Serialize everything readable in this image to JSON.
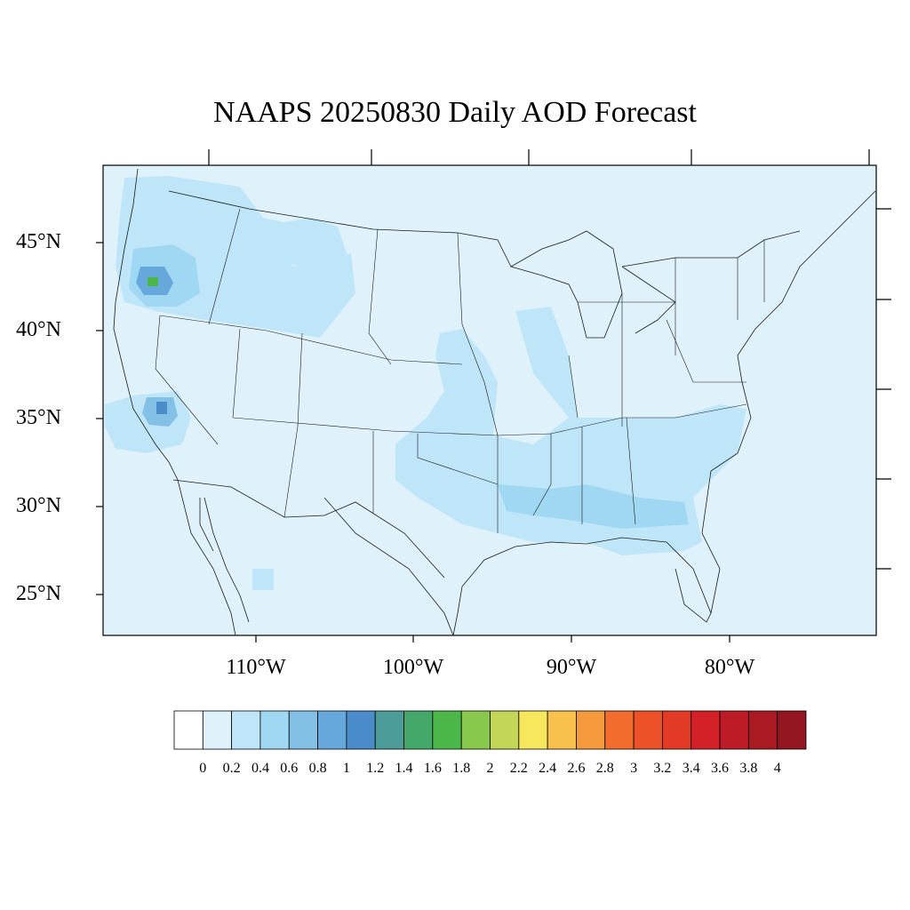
{
  "title": "NAAPS 20250830 Daily AOD Forecast",
  "map": {
    "background_color": "#dff2fb",
    "lat_labels": [
      "45°N",
      "40°N",
      "35°N",
      "30°N",
      "25°N"
    ],
    "lon_labels": [
      "110°W",
      "100°W",
      "90°W",
      "80°W"
    ]
  },
  "colorbar": {
    "colors": [
      "#ffffff",
      "#dff2fb",
      "#bfe6f8",
      "#a0d8f3",
      "#82c0e6",
      "#66a8dc",
      "#4a8bc9",
      "#4c9d99",
      "#45a86b",
      "#4cb749",
      "#88c84d",
      "#c4d657",
      "#f6e75c",
      "#f8c14b",
      "#f59a3c",
      "#f26c2d",
      "#ed5128",
      "#e33a26",
      "#d42128",
      "#bd1b25",
      "#aa1a23",
      "#941620"
    ],
    "labels": [
      "0",
      "0.2",
      "0.4",
      "0.6",
      "0.8",
      "1",
      "1.2",
      "1.4",
      "1.6",
      "1.8",
      "2",
      "2.2",
      "2.4",
      "2.6",
      "2.8",
      "3",
      "3.2",
      "3.4",
      "3.6",
      "3.8",
      "4"
    ]
  }
}
